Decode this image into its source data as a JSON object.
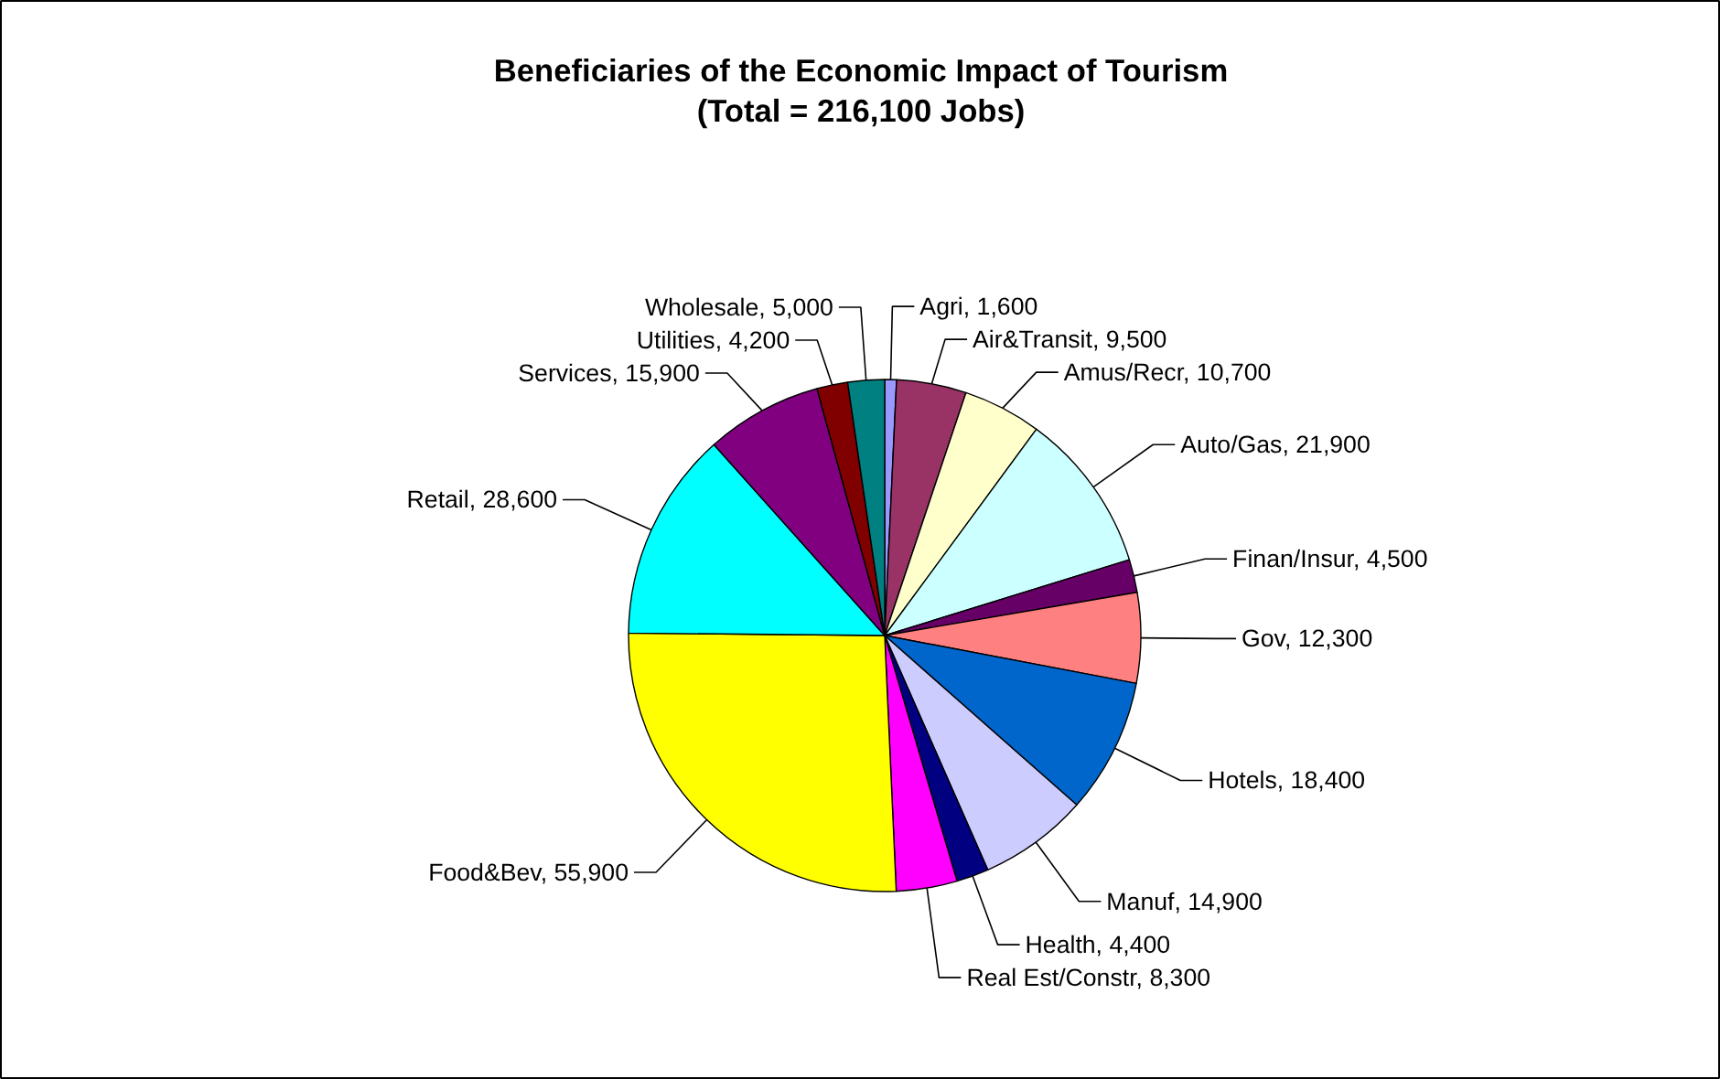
{
  "chart_data": {
    "type": "pie",
    "title": "Beneficiaries of the Economic Impact of Tourism",
    "subtitle": "(Total = 216,100 Jobs)",
    "categories": [
      "Agri",
      "Air&Transit",
      "Amus/Recr",
      "Auto/Gas",
      "Finan/Insur",
      "Gov",
      "Hotels",
      "Manuf",
      "Health",
      "Real Est/Constr",
      "Food&Bev",
      "Retail",
      "Services",
      "Utilities",
      "Wholesale"
    ],
    "values": [
      1600,
      9500,
      10700,
      21900,
      4500,
      12300,
      18400,
      14900,
      4400,
      8300,
      55900,
      28600,
      15900,
      4200,
      5000
    ],
    "colors": [
      "#9999ff",
      "#993366",
      "#ffffcc",
      "#ccffff",
      "#660066",
      "#ff8080",
      "#0066cc",
      "#ccccff",
      "#000080",
      "#ff00ff",
      "#ffff00",
      "#00ffff",
      "#800080",
      "#800000",
      "#008080"
    ],
    "value_labels": [
      "1,600",
      "9,500",
      "10,700",
      "21,900",
      "4,500",
      "12,300",
      "18,400",
      "14,900",
      "4,400",
      "8,300",
      "55,900",
      "28,600",
      "15,900",
      "4,200",
      "5,000"
    ]
  }
}
